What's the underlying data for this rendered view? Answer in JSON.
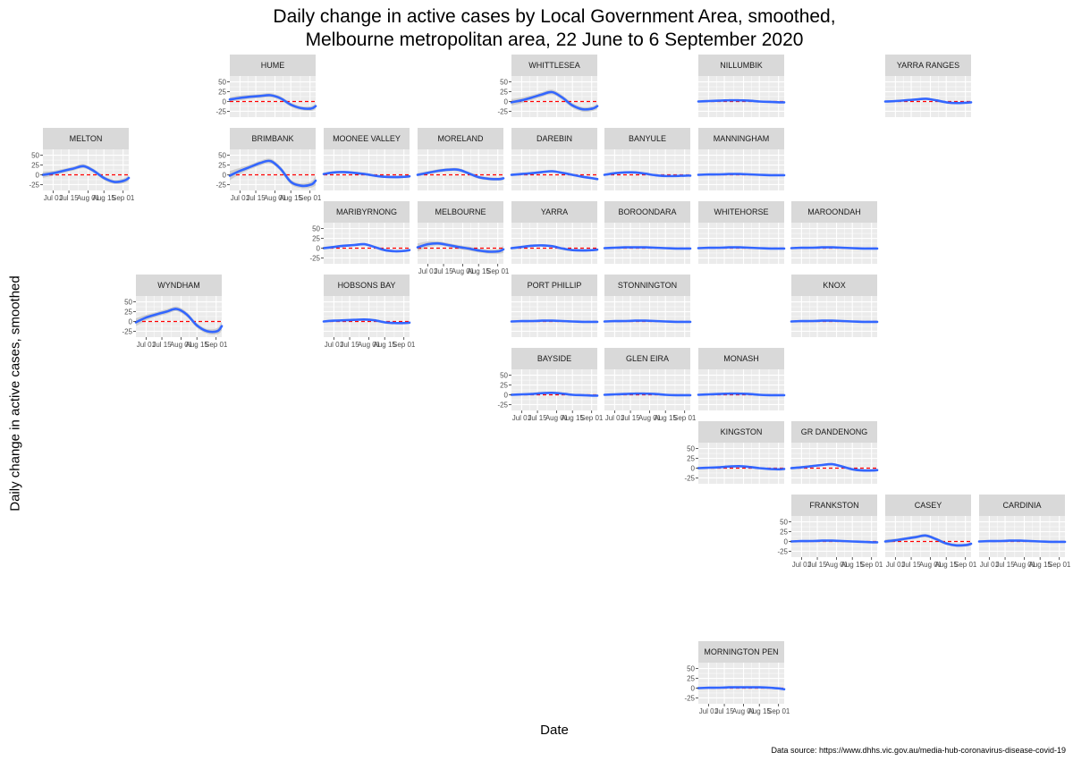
{
  "title": {
    "line1": "Daily change in active cases by Local Government Area, smoothed,",
    "line2": "Melbourne metropolitan area, 22 June to 6 September 2020"
  },
  "x_axis_title": "Date",
  "y_axis_title": "Daily change in active cases, smoothed",
  "source": "Data source: https://www.dhhs.vic.gov.au/media-hub-coronavirus-disease-covid-19",
  "colors": {
    "panel_bg": "#ebebeb",
    "strip_bg": "#d9d9d9",
    "grid": "#ffffff",
    "line": "#3366ff",
    "ribbon": "#c8c8c8",
    "zero_line": "#ff0000"
  },
  "chart_data": {
    "type": "line",
    "facet_layout": "geofacet grid of Melbourne LGAs, 11 columns x 9 rows",
    "x_tick_labels": [
      "Jul 01",
      "Jul 15",
      "Aug 01",
      "Aug 15",
      "Sep 01"
    ],
    "x_ticks": [
      "2020-07-01",
      "2020-07-15",
      "2020-08-01",
      "2020-08-15",
      "2020-09-01"
    ],
    "x_range": [
      "2020-06-22",
      "2020-09-06"
    ],
    "y_ticks": [
      -25,
      0,
      25,
      50
    ],
    "ylim": [
      -40,
      65
    ],
    "reference_line": {
      "y": 0,
      "style": "dashed",
      "color": "red"
    },
    "series_x": [
      "2020-06-22",
      "2020-07-01",
      "2020-07-10",
      "2020-07-19",
      "2020-07-28",
      "2020-08-06",
      "2020-08-15",
      "2020-08-24",
      "2020-09-02",
      "2020-09-06"
    ],
    "panels": [
      {
        "name": "HUME",
        "row": 1,
        "col": 3,
        "values": [
          5,
          9,
          12,
          14,
          16,
          8,
          -8,
          -17,
          -18,
          -12
        ],
        "band": [
          6,
          6,
          5,
          5,
          5,
          5,
          5,
          5,
          6,
          7
        ],
        "y_axis": true,
        "x_axis": false
      },
      {
        "name": "WHITTLESEA",
        "row": 1,
        "col": 6,
        "values": [
          -2,
          3,
          10,
          18,
          24,
          10,
          -10,
          -20,
          -18,
          -12
        ],
        "band": [
          8,
          7,
          6,
          6,
          6,
          6,
          6,
          6,
          6,
          7
        ],
        "y_axis": true,
        "x_axis": false
      },
      {
        "name": "NILLUMBIK",
        "row": 1,
        "col": 8,
        "values": [
          0,
          1,
          2,
          3,
          3,
          2,
          0,
          -1,
          -2,
          -2
        ],
        "band": [
          2,
          2,
          2,
          2,
          2,
          2,
          2,
          2,
          2,
          2
        ],
        "y_axis": false,
        "x_axis": false
      },
      {
        "name": "YARRA RANGES",
        "row": 1,
        "col": 10,
        "values": [
          0,
          1,
          3,
          5,
          7,
          3,
          -2,
          -4,
          -3,
          -2
        ],
        "band": [
          2,
          2,
          2,
          2,
          2,
          2,
          2,
          2,
          2,
          2
        ],
        "y_axis": false,
        "x_axis": false
      },
      {
        "name": "MELTON",
        "row": 2,
        "col": 1,
        "values": [
          0,
          4,
          10,
          16,
          22,
          10,
          -8,
          -18,
          -15,
          -8
        ],
        "band": [
          8,
          6,
          5,
          5,
          5,
          5,
          5,
          5,
          6,
          7
        ],
        "y_axis": true,
        "x_axis": true
      },
      {
        "name": "BRIMBANK",
        "row": 2,
        "col": 3,
        "values": [
          -2,
          10,
          20,
          30,
          35,
          15,
          -18,
          -28,
          -25,
          -15
        ],
        "band": [
          12,
          8,
          6,
          6,
          6,
          6,
          6,
          6,
          8,
          12
        ],
        "y_axis": true,
        "x_axis": true
      },
      {
        "name": "MOONEE VALLEY",
        "row": 2,
        "col": 4,
        "values": [
          2,
          6,
          7,
          5,
          2,
          -2,
          -5,
          -6,
          -5,
          -4
        ],
        "band": [
          3,
          3,
          3,
          3,
          3,
          3,
          3,
          3,
          3,
          3
        ],
        "y_axis": false,
        "x_axis": false
      },
      {
        "name": "MORELAND",
        "row": 2,
        "col": 5,
        "values": [
          0,
          5,
          10,
          13,
          13,
          4,
          -6,
          -10,
          -11,
          -9
        ],
        "band": [
          4,
          4,
          4,
          4,
          4,
          4,
          4,
          4,
          4,
          4
        ],
        "y_axis": false,
        "x_axis": false
      },
      {
        "name": "DAREBIN",
        "row": 2,
        "col": 6,
        "values": [
          0,
          2,
          4,
          7,
          9,
          5,
          0,
          -5,
          -9,
          -11
        ],
        "band": [
          3,
          3,
          3,
          3,
          3,
          3,
          3,
          3,
          3,
          3
        ],
        "y_axis": false,
        "x_axis": false
      },
      {
        "name": "BANYULE",
        "row": 2,
        "col": 7,
        "values": [
          0,
          4,
          6,
          6,
          3,
          -1,
          -3,
          -3,
          -2,
          -2
        ],
        "band": [
          2,
          2,
          2,
          2,
          2,
          2,
          2,
          2,
          2,
          2
        ],
        "y_axis": false,
        "x_axis": false
      },
      {
        "name": "MANNINGHAM",
        "row": 2,
        "col": 8,
        "values": [
          0,
          1,
          1,
          2,
          2,
          1,
          0,
          -1,
          -1,
          -1
        ],
        "band": [
          2,
          2,
          2,
          2,
          2,
          2,
          2,
          2,
          2,
          2
        ],
        "y_axis": false,
        "x_axis": false
      },
      {
        "name": "MARIBYRNONG",
        "row": 3,
        "col": 4,
        "values": [
          0,
          3,
          6,
          8,
          10,
          3,
          -5,
          -8,
          -7,
          -5
        ],
        "band": [
          3,
          3,
          3,
          3,
          3,
          3,
          3,
          3,
          3,
          3
        ],
        "y_axis": true,
        "x_axis": false
      },
      {
        "name": "MELBOURNE",
        "row": 3,
        "col": 5,
        "values": [
          2,
          10,
          12,
          8,
          3,
          -1,
          -6,
          -9,
          -8,
          -3
        ],
        "band": [
          10,
          7,
          5,
          5,
          5,
          5,
          5,
          5,
          6,
          9
        ],
        "y_axis": false,
        "x_axis": true
      },
      {
        "name": "YARRA",
        "row": 3,
        "col": 6,
        "values": [
          0,
          3,
          6,
          7,
          5,
          -1,
          -5,
          -6,
          -5,
          -4
        ],
        "band": [
          3,
          3,
          3,
          3,
          3,
          3,
          3,
          3,
          3,
          3
        ],
        "y_axis": false,
        "x_axis": false
      },
      {
        "name": "BOROONDARA",
        "row": 3,
        "col": 7,
        "values": [
          0,
          1,
          2,
          2,
          2,
          1,
          0,
          -1,
          -1,
          -1
        ],
        "band": [
          2,
          2,
          2,
          2,
          2,
          2,
          2,
          2,
          2,
          2
        ],
        "y_axis": false,
        "x_axis": false
      },
      {
        "name": "WHITEHORSE",
        "row": 3,
        "col": 8,
        "values": [
          0,
          1,
          1,
          2,
          2,
          1,
          0,
          -1,
          -1,
          -1
        ],
        "band": [
          2,
          2,
          2,
          2,
          2,
          2,
          2,
          2,
          2,
          2
        ],
        "y_axis": false,
        "x_axis": false
      },
      {
        "name": "MAROONDAH",
        "row": 3,
        "col": 9,
        "values": [
          0,
          1,
          1,
          2,
          2,
          1,
          0,
          -1,
          -1,
          -1
        ],
        "band": [
          2,
          2,
          2,
          2,
          2,
          2,
          2,
          2,
          2,
          2
        ],
        "y_axis": false,
        "x_axis": false
      },
      {
        "name": "WYNDHAM",
        "row": 4,
        "col": 2,
        "values": [
          -2,
          10,
          18,
          25,
          32,
          18,
          -10,
          -25,
          -25,
          -12
        ],
        "band": [
          10,
          7,
          6,
          6,
          6,
          6,
          6,
          6,
          8,
          12
        ],
        "y_axis": true,
        "x_axis": true
      },
      {
        "name": "HOBSONS BAY",
        "row": 4,
        "col": 4,
        "values": [
          0,
          2,
          3,
          4,
          5,
          3,
          -2,
          -4,
          -4,
          -3
        ],
        "band": [
          2,
          2,
          2,
          2,
          2,
          2,
          2,
          2,
          2,
          2
        ],
        "y_axis": false,
        "x_axis": true
      },
      {
        "name": "PORT PHILLIP",
        "row": 4,
        "col": 6,
        "values": [
          0,
          1,
          1,
          2,
          2,
          1,
          0,
          -1,
          -1,
          -1
        ],
        "band": [
          2,
          2,
          2,
          2,
          2,
          2,
          2,
          2,
          2,
          2
        ],
        "y_axis": false,
        "x_axis": false
      },
      {
        "name": "STONNINGTON",
        "row": 4,
        "col": 7,
        "values": [
          0,
          1,
          1,
          2,
          2,
          1,
          0,
          -1,
          -1,
          -1
        ],
        "band": [
          2,
          2,
          2,
          2,
          2,
          2,
          2,
          2,
          2,
          2
        ],
        "y_axis": false,
        "x_axis": false
      },
      {
        "name": "KNOX",
        "row": 4,
        "col": 9,
        "values": [
          0,
          1,
          1,
          2,
          2,
          1,
          0,
          -1,
          -1,
          -1
        ],
        "band": [
          2,
          2,
          2,
          2,
          2,
          2,
          2,
          2,
          2,
          2
        ],
        "y_axis": false,
        "x_axis": false
      },
      {
        "name": "BAYSIDE",
        "row": 5,
        "col": 6,
        "values": [
          0,
          1,
          2,
          4,
          5,
          3,
          0,
          -1,
          -2,
          -2
        ],
        "band": [
          2,
          2,
          2,
          2,
          2,
          2,
          2,
          2,
          2,
          2
        ],
        "y_axis": true,
        "x_axis": true
      },
      {
        "name": "GLEN EIRA",
        "row": 5,
        "col": 7,
        "values": [
          0,
          1,
          2,
          3,
          3,
          2,
          0,
          -1,
          -1,
          -1
        ],
        "band": [
          2,
          2,
          2,
          2,
          2,
          2,
          2,
          2,
          2,
          2
        ],
        "y_axis": false,
        "x_axis": true
      },
      {
        "name": "MONASH",
        "row": 5,
        "col": 8,
        "values": [
          0,
          1,
          2,
          3,
          3,
          2,
          0,
          -1,
          -1,
          -1
        ],
        "band": [
          2,
          2,
          2,
          2,
          2,
          2,
          2,
          2,
          2,
          2
        ],
        "y_axis": false,
        "x_axis": false
      },
      {
        "name": "KINGSTON",
        "row": 6,
        "col": 8,
        "values": [
          0,
          1,
          2,
          4,
          5,
          3,
          0,
          -2,
          -3,
          -2
        ],
        "band": [
          2,
          2,
          2,
          2,
          2,
          2,
          2,
          2,
          2,
          2
        ],
        "y_axis": true,
        "x_axis": false
      },
      {
        "name": "GR DANDENONG",
        "row": 6,
        "col": 9,
        "values": [
          0,
          2,
          5,
          8,
          10,
          4,
          -3,
          -6,
          -6,
          -5
        ],
        "band": [
          3,
          3,
          3,
          3,
          3,
          3,
          3,
          3,
          3,
          3
        ],
        "y_axis": false,
        "x_axis": false
      },
      {
        "name": "FRANKSTON",
        "row": 7,
        "col": 9,
        "values": [
          0,
          1,
          1,
          2,
          2,
          1,
          0,
          -1,
          -2,
          -2
        ],
        "band": [
          2,
          2,
          2,
          2,
          2,
          2,
          2,
          2,
          2,
          2
        ],
        "y_axis": true,
        "x_axis": true
      },
      {
        "name": "CASEY",
        "row": 7,
        "col": 10,
        "values": [
          0,
          3,
          7,
          11,
          15,
          6,
          -5,
          -10,
          -9,
          -6
        ],
        "band": [
          5,
          4,
          4,
          4,
          4,
          4,
          4,
          4,
          4,
          5
        ],
        "y_axis": false,
        "x_axis": true
      },
      {
        "name": "CARDINIA",
        "row": 7,
        "col": 11,
        "values": [
          0,
          1,
          1,
          2,
          2,
          1,
          0,
          -1,
          -1,
          -1
        ],
        "band": [
          2,
          2,
          2,
          2,
          2,
          2,
          2,
          2,
          2,
          2
        ],
        "y_axis": false,
        "x_axis": true
      },
      {
        "name": "MORNINGTON PEN",
        "row": 9,
        "col": 8,
        "values": [
          0,
          1,
          1,
          2,
          2,
          2,
          2,
          1,
          -1,
          -3
        ],
        "band": [
          2,
          2,
          2,
          2,
          2,
          2,
          2,
          2,
          2,
          2
        ],
        "y_axis": true,
        "x_axis": true
      }
    ]
  }
}
